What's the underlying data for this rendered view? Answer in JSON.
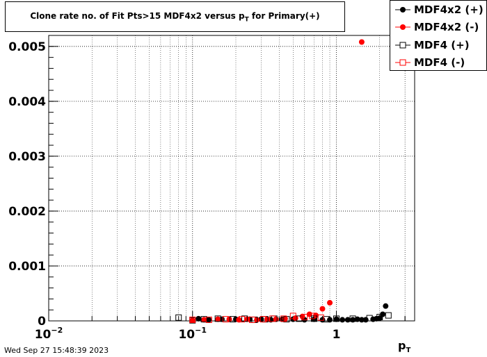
{
  "title": {
    "main": "Clone rate no. of Fit Pts>15 MDF4x2 versus p",
    "sub": "T",
    "suffix": " for Primary(+)"
  },
  "timestamp": "Wed Sep 27 15:48:39 2023",
  "chart_data": {
    "type": "scatter",
    "title": "Clone rate no. of Fit Pts>15 MDF4x2 versus pT for Primary(+)",
    "xlabel": "pT",
    "ylabel": "",
    "xscale": "log",
    "xlim": [
      0.01,
      3.5
    ],
    "ylim": [
      0,
      0.0052
    ],
    "grid": true,
    "legend_position": "top-right",
    "x_ticks": [
      {
        "value": 0.01,
        "base": "10",
        "exp": "−2"
      },
      {
        "value": 0.1,
        "base": "10",
        "exp": "−1"
      },
      {
        "value": 1,
        "base": "1",
        "exp": ""
      }
    ],
    "y_ticks": [
      {
        "value": 0,
        "label": "0"
      },
      {
        "value": 0.001,
        "label": "0.001"
      },
      {
        "value": 0.002,
        "label": "0.002"
      },
      {
        "value": 0.003,
        "label": "0.003"
      },
      {
        "value": 0.004,
        "label": "0.004"
      },
      {
        "value": 0.005,
        "label": "0.005"
      }
    ],
    "series": [
      {
        "name": "MDF4x2 (+)",
        "color": "#000000",
        "marker": "filled-circle",
        "points": [
          {
            "x": 0.11,
            "y": 4e-05
          },
          {
            "x": 0.13,
            "y": 2e-05
          },
          {
            "x": 0.16,
            "y": 3e-05
          },
          {
            "x": 0.2,
            "y": 3e-05
          },
          {
            "x": 0.25,
            "y": 3e-05
          },
          {
            "x": 0.3,
            "y": 3e-05
          },
          {
            "x": 0.35,
            "y": 2e-05
          },
          {
            "x": 0.42,
            "y": 3e-05
          },
          {
            "x": 0.5,
            "y": 3e-05
          },
          {
            "x": 0.6,
            "y": 2e-05
          },
          {
            "x": 0.7,
            "y": 3e-05
          },
          {
            "x": 0.8,
            "y": 2e-05
          },
          {
            "x": 0.9,
            "y": 2e-05
          },
          {
            "x": 1.0,
            "y": 3e-05
          },
          {
            "x": 1.1,
            "y": 2e-05
          },
          {
            "x": 1.2,
            "y": 2e-05
          },
          {
            "x": 1.3,
            "y": 2e-05
          },
          {
            "x": 1.4,
            "y": 3e-05
          },
          {
            "x": 1.5,
            "y": 2e-05
          },
          {
            "x": 1.6,
            "y": 2e-05
          },
          {
            "x": 1.8,
            "y": 3e-05
          },
          {
            "x": 1.9,
            "y": 4e-05
          },
          {
            "x": 2.0,
            "y": 5e-05
          },
          {
            "x": 2.1,
            "y": 0.00012
          },
          {
            "x": 2.2,
            "y": 0.00027
          }
        ]
      },
      {
        "name": "MDF4x2 (-)",
        "color": "#ff0000",
        "marker": "filled-circle",
        "points": [
          {
            "x": 0.1,
            "y": 1e-05
          },
          {
            "x": 0.12,
            "y": 2e-05
          },
          {
            "x": 0.15,
            "y": 3e-05
          },
          {
            "x": 0.18,
            "y": 3e-05
          },
          {
            "x": 0.21,
            "y": 2e-05
          },
          {
            "x": 0.24,
            "y": 3e-05
          },
          {
            "x": 0.28,
            "y": 2e-05
          },
          {
            "x": 0.33,
            "y": 3e-05
          },
          {
            "x": 0.38,
            "y": 3e-05
          },
          {
            "x": 0.44,
            "y": 4e-05
          },
          {
            "x": 0.52,
            "y": 5e-05
          },
          {
            "x": 0.58,
            "y": 8e-05
          },
          {
            "x": 0.65,
            "y": 0.00012
          },
          {
            "x": 0.72,
            "y": 0.0001
          },
          {
            "x": 0.8,
            "y": 0.00022
          },
          {
            "x": 0.9,
            "y": 0.00033
          },
          {
            "x": 1.5,
            "y": 0.00508
          }
        ]
      },
      {
        "name": "MDF4 (+)",
        "color": "#000000",
        "marker": "open-square",
        "points": [
          {
            "x": 0.08,
            "y": 6e-05
          },
          {
            "x": 0.1,
            "y": 1e-05
          },
          {
            "x": 0.12,
            "y": 3e-05
          },
          {
            "x": 0.15,
            "y": 4e-05
          },
          {
            "x": 0.19,
            "y": 3e-05
          },
          {
            "x": 0.23,
            "y": 4e-05
          },
          {
            "x": 0.27,
            "y": 2e-05
          },
          {
            "x": 0.32,
            "y": 3e-05
          },
          {
            "x": 0.37,
            "y": 4e-05
          },
          {
            "x": 0.45,
            "y": 3e-05
          },
          {
            "x": 0.55,
            "y": 4e-05
          },
          {
            "x": 0.7,
            "y": 4e-05
          },
          {
            "x": 0.85,
            "y": 3e-05
          },
          {
            "x": 1.0,
            "y": 4e-05
          },
          {
            "x": 1.3,
            "y": 4e-05
          },
          {
            "x": 1.7,
            "y": 5e-05
          },
          {
            "x": 2.0,
            "y": 7e-05
          },
          {
            "x": 2.3,
            "y": 0.0001
          }
        ]
      },
      {
        "name": "MDF4 (-)",
        "color": "#ff0000",
        "marker": "open-square",
        "points": [
          {
            "x": 0.1,
            "y": 2e-05
          },
          {
            "x": 0.13,
            "y": 2e-05
          },
          {
            "x": 0.17,
            "y": 3e-05
          },
          {
            "x": 0.22,
            "y": 3e-05
          },
          {
            "x": 0.26,
            "y": 2e-05
          },
          {
            "x": 0.31,
            "y": 3e-05
          },
          {
            "x": 0.36,
            "y": 4e-05
          },
          {
            "x": 0.43,
            "y": 4e-05
          },
          {
            "x": 0.5,
            "y": 9e-05
          },
          {
            "x": 0.6,
            "y": 7e-05
          },
          {
            "x": 0.68,
            "y": 9e-05
          },
          {
            "x": 0.78,
            "y": 6e-05
          }
        ]
      }
    ]
  }
}
